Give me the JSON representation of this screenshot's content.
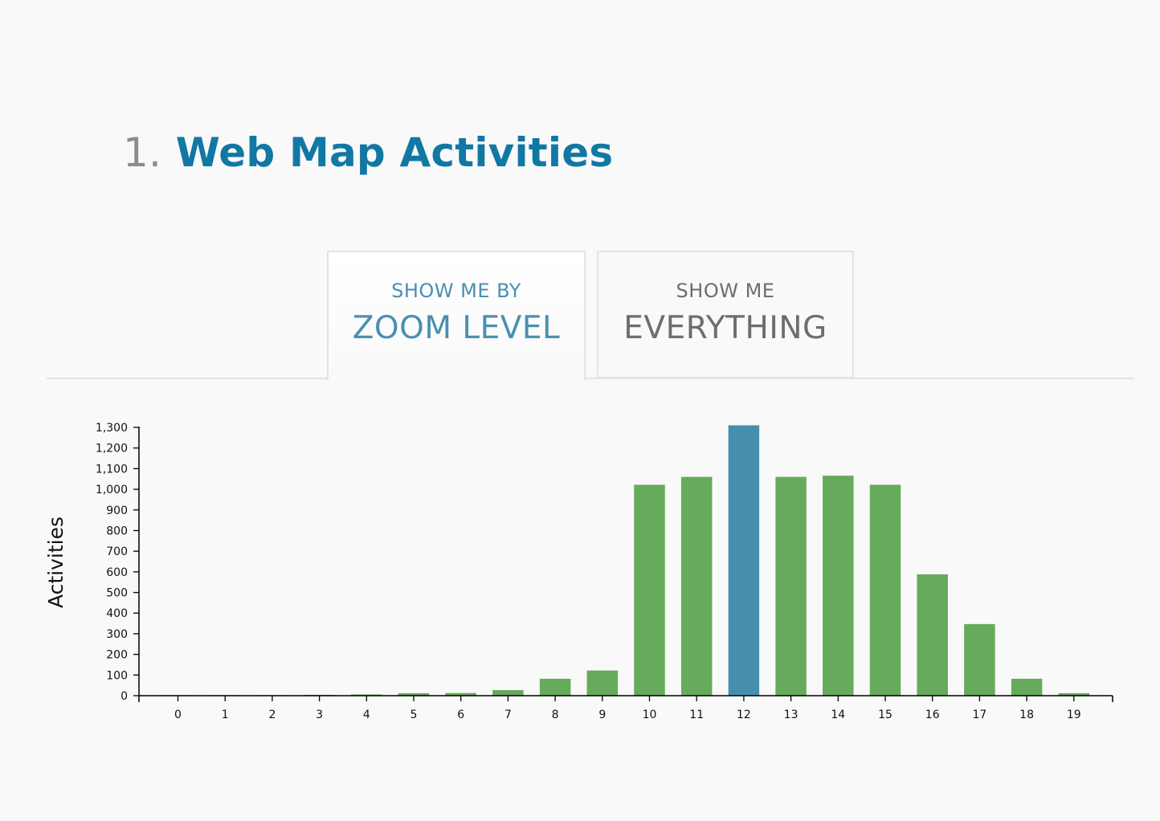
{
  "header": {
    "number": "1.",
    "title": "Web Map Activities"
  },
  "tabs": [
    {
      "small": "SHOW ME BY",
      "big": "ZOOM LEVEL",
      "active": true
    },
    {
      "small": "SHOW ME",
      "big": "EVERYTHING",
      "active": false
    }
  ],
  "colors": {
    "bar": "#66ab5b",
    "highlight": "#468eae",
    "title_accent": "#1178a4",
    "tab_active_text": "#4a8fb1",
    "tab_inactive_text": "#6d6d6d"
  },
  "chart_data": {
    "type": "bar",
    "xlabel": "",
    "ylabel": "Activities",
    "ylim": [
      0,
      1300
    ],
    "yticks": [
      0,
      100,
      200,
      300,
      400,
      500,
      600,
      700,
      800,
      900,
      1000,
      1100,
      1200,
      1300
    ],
    "ytick_labels": [
      "0",
      "100",
      "200",
      "300",
      "400",
      "500",
      "600",
      "700",
      "800",
      "900",
      "1,000",
      "1,100",
      "1,200",
      "1,300"
    ],
    "categories": [
      "0",
      "1",
      "2",
      "3",
      "4",
      "5",
      "6",
      "7",
      "8",
      "9",
      "10",
      "11",
      "12",
      "13",
      "14",
      "15",
      "16",
      "17",
      "18",
      "19"
    ],
    "values": [
      1,
      1,
      1,
      4,
      6,
      12,
      13,
      27,
      82,
      122,
      1022,
      1060,
      1310,
      1060,
      1066,
      1022,
      588,
      347,
      82,
      12
    ],
    "highlighted_category": "12",
    "grid": false,
    "legend": "none"
  }
}
